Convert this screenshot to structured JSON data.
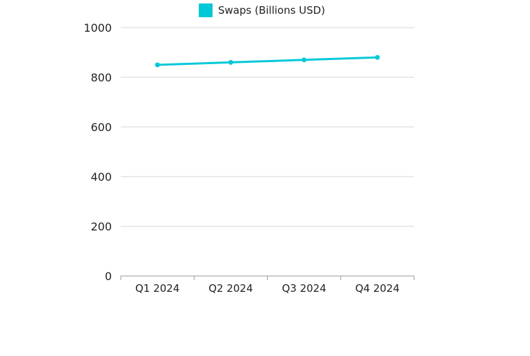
{
  "chart_data": {
    "type": "line",
    "categories": [
      "Q1 2024",
      "Q2 2024",
      "Q3 2024",
      "Q4 2024"
    ],
    "series": [
      {
        "name": "Swaps (Billions USD)",
        "values": [
          850,
          860,
          870,
          880
        ],
        "color": "#00c8d7"
      }
    ],
    "ylim": [
      0,
      1000
    ],
    "yticks": [
      0,
      200,
      400,
      600,
      800,
      1000
    ],
    "grid": true,
    "legend_position": "top-center"
  }
}
